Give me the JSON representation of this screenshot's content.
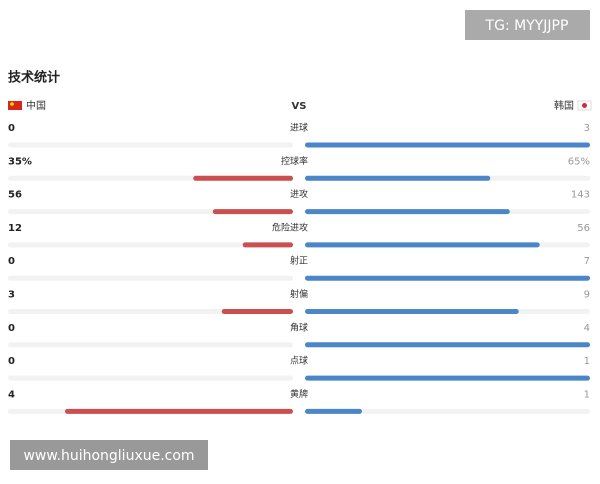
{
  "watermark": "TG: MYYJJPP",
  "footer": "www.huihongliuxue.com",
  "title": "技术统计",
  "teams": {
    "home": "中国",
    "vs": "VS",
    "away": "韩国"
  },
  "stats": [
    {
      "label": "进球",
      "home": 0,
      "away": 3
    },
    {
      "label": "控球率",
      "home": 35,
      "away": 65,
      "home_label": "35%",
      "away_label": "65%"
    },
    {
      "label": "进攻",
      "home": 56,
      "away": 143
    },
    {
      "label": "危险进攻",
      "home": 12,
      "away": 56
    },
    {
      "label": "射正",
      "home": 0,
      "away": 7
    },
    {
      "label": "射偏",
      "home": 3,
      "away": 9
    },
    {
      "label": "角球",
      "home": 0,
      "away": 4
    },
    {
      "label": "点球",
      "home": 0,
      "away": 1
    },
    {
      "label": "黄牌",
      "home": 4,
      "away": 1
    }
  ]
}
